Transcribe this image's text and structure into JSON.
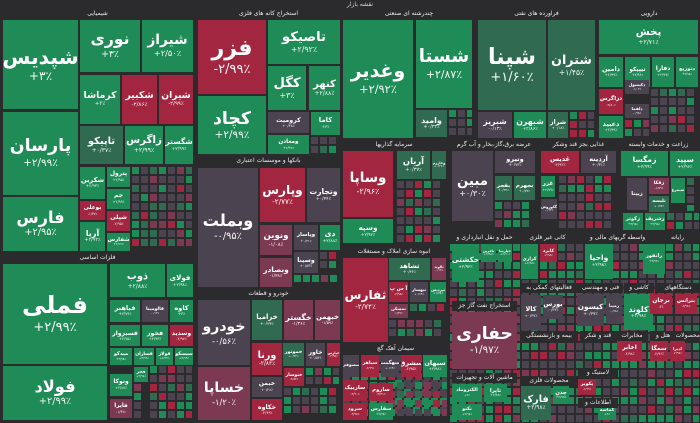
{
  "title": "نقشه بازار",
  "colors": {
    "g": "#1f8b57",
    "g2": "#2f6a51",
    "r": "#a32640",
    "r2": "#7c3a52",
    "n": "#4b4350",
    "background": "#2b2a2c"
  },
  "sectors": [
    {
      "label": "شیمیایی"
    },
    {
      "label": "فلزات اساسی"
    },
    {
      "label": "استخراج کانه های فلزی"
    },
    {
      "label": "بانکها و موسسات اعتباری"
    },
    {
      "label": "خودرو و قطعات"
    },
    {
      "label": "چندرشته ای صنعتی"
    },
    {
      "label": "سرمایه گذاریها"
    },
    {
      "label": "انبوه سازی املاک و مستغلات"
    },
    {
      "label": "سیمان آهک گچ"
    },
    {
      "label": "فراورده های نفتی"
    },
    {
      "label": "عرضه برق،گاز،بخار و آب گرم"
    },
    {
      "label": "غذایی بجز قند وشکر"
    },
    {
      "label": "زراعت و خدمات وابسته"
    },
    {
      "label": "دارویی"
    },
    {
      "label": "حمل و نقل انبارداری و"
    },
    {
      "label": "استخراج نفت گاز جز"
    },
    {
      "label": "ماشین آلات و تجهیزات"
    },
    {
      "label": "کانی غیر فلزی"
    },
    {
      "label": "فعالیتهای کمکی به"
    },
    {
      "label": "بیمه و بازنشستگی"
    },
    {
      "label": "محصولات فلزی"
    },
    {
      "label": "واسطه گریهای مالی و"
    },
    {
      "label": "فنی و مهندسی"
    },
    {
      "label": "قند و شکر"
    },
    {
      "label": "کاشی و"
    },
    {
      "label": "رایانه"
    },
    {
      "label": "دستگاههای"
    },
    {
      "label": "مخابرات"
    },
    {
      "label": "هتل و"
    },
    {
      "label": "محصولات"
    },
    {
      "label": "لاستیک و"
    },
    {
      "label": "اطلاعات و"
    }
  ],
  "tiles": [
    {
      "sym": "شپدیس",
      "chg": "+۳٪",
      "tone": "g"
    },
    {
      "sym": "پارسان",
      "chg": "+۲/۹۹٪",
      "tone": "g"
    },
    {
      "sym": "فارس",
      "chg": "+۲/۹۵٪",
      "tone": "g"
    },
    {
      "sym": "نوری",
      "chg": "+۳٪",
      "tone": "g"
    },
    {
      "sym": "شیراز",
      "chg": "+۲/۵۰٪",
      "tone": "g"
    },
    {
      "sym": "کرماشا",
      "chg": "+۳٪",
      "tone": "g"
    },
    {
      "sym": "شکبیر",
      "chg": "-۲/۸۶٪",
      "tone": "r"
    },
    {
      "sym": "شیران",
      "chg": "-۲/۹۹٪",
      "tone": "r"
    },
    {
      "sym": "تاپیکو",
      "chg": "+۰/۳۷٪",
      "tone": "g2"
    },
    {
      "sym": "زاگرس",
      "chg": "+۲/۹۹٪",
      "tone": "g"
    },
    {
      "sym": "شگستر",
      "chg": "+۲/۹۹٪",
      "tone": "g"
    },
    {
      "sym": "شکربن",
      "chg": "+۲/۹۳٪",
      "tone": "g"
    },
    {
      "sym": "پترول",
      "chg": "+۲/۹۵٪",
      "tone": "g"
    },
    {
      "sym": "جم",
      "chg": "+۲/۹۹٪",
      "tone": "g"
    },
    {
      "sym": "بوعلی",
      "chg": "-۱/۳۷٪",
      "tone": "r"
    },
    {
      "sym": "شپلی",
      "chg": "-۲/۹۵٪",
      "tone": "r"
    },
    {
      "sym": "آریا",
      "chg": "+۲/۹۴٪",
      "tone": "g"
    },
    {
      "sym": "شفارس",
      "chg": "+۲/۱۲٪",
      "tone": "g"
    },
    {
      "sym": "فملی",
      "chg": "+۲/۹۹٪",
      "tone": "g"
    },
    {
      "sym": "فولاد",
      "chg": "+۲/۹۹٪",
      "tone": "g"
    },
    {
      "sym": "ذوب",
      "chg": "+۲/۸۸٪",
      "tone": "g"
    },
    {
      "sym": "فولای",
      "chg": "+۲/۹۸٪",
      "tone": "g"
    },
    {
      "sym": "فباهنر",
      "chg": "+۲/۷۹٪",
      "tone": "g"
    },
    {
      "sym": "فالومینا",
      "chg": "-۰/۱۳٪",
      "tone": "n"
    },
    {
      "sym": "کاوه",
      "chg": "+۳٪",
      "tone": "g"
    },
    {
      "sym": "فسبزوار",
      "chg": "+۲/۹۵٪",
      "tone": "g"
    },
    {
      "sym": "فخوز",
      "chg": "+۲/۹۳٪",
      "tone": "g"
    },
    {
      "sym": "وسدید",
      "chg": "-۲/۹۷٪",
      "tone": "r"
    },
    {
      "sym": "میدکو",
      "chg": "+۲/۹۸٪",
      "tone": "g"
    },
    {
      "sym": "فسازان",
      "chg": "+۲/۹۹٪",
      "tone": "g"
    },
    {
      "sym": "فولاژ",
      "chg": "+۲/۹۹٪",
      "tone": "g"
    },
    {
      "sym": "سیسکو",
      "chg": "+۲/۹۹٪",
      "tone": "g"
    },
    {
      "sym": "ونوکا",
      "chg": "+۲/۷۷٪",
      "tone": "g"
    },
    {
      "sym": "فایرا",
      "chg": "-۱/۹۹٪",
      "tone": "r2"
    },
    {
      "sym": "فجر",
      "chg": "+۲/۹۸٪",
      "tone": "g"
    },
    {
      "sym": "فزر",
      "chg": "-۲/۹۹٪",
      "tone": "r"
    },
    {
      "sym": "کچاد",
      "chg": "+۲/۹۹٪",
      "tone": "g"
    },
    {
      "sym": "تاصیکو",
      "chg": "+۲/۹۲٪",
      "tone": "g"
    },
    {
      "sym": "کگل",
      "chg": "+۳٪",
      "tone": "g"
    },
    {
      "sym": "کنهر",
      "chg": "+۲/۸۸٪",
      "tone": "g"
    },
    {
      "sym": "کرومیت",
      "chg": "+۰/۴۸٪",
      "tone": "n"
    },
    {
      "sym": "کاما",
      "chg": "+۳٪",
      "tone": "g"
    },
    {
      "sym": "ومعادن",
      "chg": "+۲/۹۲٪",
      "tone": "g"
    },
    {
      "sym": "وبملت",
      "chg": "-۰/۹۵٪",
      "tone": "n"
    },
    {
      "sym": "وپارس",
      "chg": "-۲/۷۷٪",
      "tone": "r"
    },
    {
      "sym": "وتجارت",
      "chg": "+۰/۴۴٪",
      "tone": "n"
    },
    {
      "sym": "ونوین",
      "chg": "-۱/۰۸٪",
      "tone": "r2"
    },
    {
      "sym": "وپاسار",
      "chg": "+۰/۳۱٪",
      "tone": "n"
    },
    {
      "sym": "دی",
      "chg": "+۲/۸۸٪",
      "tone": "g"
    },
    {
      "sym": "وبصادر",
      "chg": "-۱/۳۸٪",
      "tone": "r2"
    },
    {
      "sym": "وسینا",
      "chg": "+۰/۸۳٪",
      "tone": "n"
    },
    {
      "sym": "خودرو",
      "chg": "-۰/۵۶٪",
      "tone": "n"
    },
    {
      "sym": "خساپا",
      "chg": "-۱/۲۰٪",
      "tone": "r2"
    },
    {
      "sym": "خزامیا",
      "chg": "+۰/۳۳٪",
      "tone": "g2"
    },
    {
      "sym": "خگستر",
      "chg": "-۱/۳۶٪",
      "tone": "r2"
    },
    {
      "sym": "خبهمن",
      "chg": "-۱/۵۹٪",
      "tone": "r2"
    },
    {
      "sym": "ورنا",
      "chg": "-۲/۸۴٪",
      "tone": "r"
    },
    {
      "sym": "خموتور",
      "chg": "+۰/۳۴٪",
      "tone": "g2"
    },
    {
      "sym": "خاور",
      "chg": "+۰/۵۴٪",
      "tone": "n"
    },
    {
      "sym": "خپارس",
      "chg": "-۲/۹۷٪",
      "tone": "r"
    },
    {
      "sym": "خبمن",
      "chg": "+۰/۲۸٪",
      "tone": "n"
    },
    {
      "sym": "خکاوه",
      "chg": "-۲/۹۹٪",
      "tone": "r"
    },
    {
      "sym": "خنوساز",
      "chg": "-۲/۸۳٪",
      "tone": "r"
    },
    {
      "sym": "وغدیر",
      "chg": "+۲/۹۲٪",
      "tone": "g"
    },
    {
      "sym": "شستا",
      "chg": "+۲/۸۷٪",
      "tone": "g"
    },
    {
      "sym": "وامید",
      "chg": "+۰/۳۳٪",
      "tone": "g2"
    },
    {
      "sym": "وساپا",
      "chg": "-۲/۹۶٪",
      "tone": "r"
    },
    {
      "sym": "وسپه",
      "chg": "+۲/۹۲٪",
      "tone": "g"
    },
    {
      "sym": "آریان",
      "chg": "+۰/۳۷٪",
      "tone": "g2"
    },
    {
      "sym": "وخارزم",
      "chg": "+۰/۳۶٪",
      "tone": "g2"
    },
    {
      "sym": "ثفارس",
      "chg": "-۲/۷۴٪",
      "tone": "r"
    },
    {
      "sym": "ثشاهد",
      "chg": "+۰/۴۴٪",
      "tone": "g2"
    },
    {
      "sym": "ثالوند",
      "chg": "-۰/۱۳٪",
      "tone": "r2"
    },
    {
      "sym": "آ س پ",
      "chg": "-۲/۹۵٪",
      "tone": "r"
    },
    {
      "sym": "ثبهساز",
      "chg": "+۰/۶۴٪",
      "tone": "n"
    },
    {
      "sym": "ثپردیس",
      "chg": "+۱/۷۸٪",
      "tone": "g"
    },
    {
      "sym": "ثمسکن",
      "chg": "-۱/۳۲٪",
      "tone": "r2"
    },
    {
      "sym": "سصوفی",
      "chg": "",
      "tone": "n"
    },
    {
      "sym": "سیاهر",
      "chg": "-۲/۹۹٪",
      "tone": "r"
    },
    {
      "sym": "سهگمت",
      "chg": "+۰/۶۴٪",
      "tone": "n"
    },
    {
      "sym": "سشرق",
      "chg": "-۲/۹۵٪",
      "tone": "r"
    },
    {
      "sym": "سبهان",
      "chg": "+۲/۹۸٪",
      "tone": "g"
    },
    {
      "sym": "ساربیک",
      "chg": "-۲/۹۰٪",
      "tone": "r"
    },
    {
      "sym": "ساروم",
      "chg": "-۲/۴۱٪",
      "tone": "r"
    },
    {
      "sym": "سرود",
      "chg": "-۲/۹۵٪",
      "tone": "r"
    },
    {
      "sym": "سفارس",
      "chg": "+۲/۹۸٪",
      "tone": "g"
    },
    {
      "sym": "شپنا",
      "chg": "+۱/۶۰٪",
      "tone": "g2"
    },
    {
      "sym": "شتران",
      "chg": "+۱/۴۵٪",
      "tone": "g2"
    },
    {
      "sym": "شبریز",
      "chg": "-۰/۱۳٪",
      "tone": "n"
    },
    {
      "sym": "شبهرن",
      "chg": "+۲/۸۶٪",
      "tone": "g"
    },
    {
      "sym": "شراز",
      "chg": "+۰/۱۸٪",
      "tone": "g2"
    },
    {
      "sym": "مبین",
      "chg": "+۰/۳۰٪",
      "tone": "n"
    },
    {
      "sym": "وتیرو",
      "chg": "+۰/۷۳٪",
      "tone": "n"
    },
    {
      "sym": "بفجر",
      "chg": "+۰/۳۲٪",
      "tone": "g2"
    },
    {
      "sym": "بجهرم",
      "chg": "+۰/۷۷٪",
      "tone": "g2"
    },
    {
      "sym": "غدیس",
      "chg": "-۲/۹۲٪",
      "tone": "r"
    },
    {
      "sym": "آردینه",
      "chg": "+۰/۳۱٪",
      "tone": "n"
    },
    {
      "sym": "غزر",
      "chg": "+۲/۹۹٪",
      "tone": "g"
    },
    {
      "sym": "گکوروش",
      "chg": "-۰/۹۲٪",
      "tone": "n"
    },
    {
      "sym": "زمگسا",
      "chg": "+۲/۹۹٪",
      "tone": "g"
    },
    {
      "sym": "سپید",
      "chg": "+۲/۹۶٪",
      "tone": "g"
    },
    {
      "sym": "زبینا",
      "chg": "",
      "tone": "n"
    },
    {
      "sym": "زفکا",
      "chg": "-۱/۵۹٪",
      "tone": "r2"
    },
    {
      "sym": "تلیسه",
      "chg": "+۰/۷۷٪",
      "tone": "g2"
    },
    {
      "sym": "سیمرغ",
      "chg": "",
      "tone": "g"
    },
    {
      "sym": "زکوثر",
      "chg": "+۲/۹۸٪",
      "tone": "g"
    },
    {
      "sym": "زشریف",
      "chg": "+۲/۹۸٪",
      "tone": "g"
    },
    {
      "sym": "پخش",
      "chg": "+۲/۷۱٪",
      "tone": "g"
    },
    {
      "sym": "دامین",
      "chg": "+۲/۹۹٪",
      "tone": "g"
    },
    {
      "sym": "تیپیکو",
      "chg": "+۲/۹۶٪",
      "tone": "g"
    },
    {
      "sym": "دفارا",
      "chg": "+۲/۹۹٪",
      "tone": "g"
    },
    {
      "sym": "دتوزیع",
      "chg": "+۲/۹۸٪",
      "tone": "g"
    },
    {
      "sym": "دزاگرس",
      "chg": "-۲/۸۰٪",
      "tone": "r"
    },
    {
      "sym": "دکپسول",
      "chg": "-۱/۰۳٪",
      "tone": "n"
    },
    {
      "sym": "دلقما",
      "chg": "-۰/۹۸٪",
      "tone": "n"
    },
    {
      "sym": "دعبید",
      "chg": "+۲/۹۹٪",
      "tone": "g"
    },
    {
      "sym": "حکشتی",
      "chg": "+۲/۹۳٪",
      "tone": "g"
    },
    {
      "sym": "بافرین",
      "chg": "+۲/۹۸٪",
      "tone": "g"
    },
    {
      "sym": "حپارسا",
      "chg": "+۲/۹۰٪",
      "tone": "g"
    },
    {
      "sym": "حفاری",
      "chg": "-۱/۹۷٪",
      "tone": "r2"
    },
    {
      "sym": "الکتروماد",
      "chg": "+۳٪",
      "tone": "g"
    },
    {
      "sym": "تاپرا",
      "chg": "+۲/۹۸٪",
      "tone": "g"
    },
    {
      "sym": "تکنو",
      "chg": "+۲/۹۸٪",
      "tone": "g"
    },
    {
      "sym": "کرازی",
      "chg": "+۲/۹۸٪",
      "tone": "g"
    },
    {
      "sym": "کایزد",
      "chg": "-۲/۹۸٪",
      "tone": "r"
    },
    {
      "sym": "کالا",
      "chg": "+۰/۳۷٪",
      "tone": "n"
    },
    {
      "sym": "بورس",
      "chg": "-۰/۴۳٪",
      "tone": "n"
    },
    {
      "sym": "فارک",
      "chg": "+۲/۹۸٪",
      "tone": "g2"
    },
    {
      "sym": "چدن",
      "chg": "+۲/۹۸٪",
      "tone": "g"
    },
    {
      "sym": "واحیا",
      "chg": "+۲/۹۸٪",
      "tone": "g"
    },
    {
      "sym": "کیسون",
      "chg": "+۰/۳۷٪",
      "tone": "n"
    },
    {
      "sym": "رمپنا",
      "chg": "-۰/۶۸٪",
      "tone": "n"
    },
    {
      "sym": "کلوند",
      "chg": "+۲/۹۸٪",
      "tone": "g"
    },
    {
      "sym": "رانفور",
      "chg": "+۲/۹۶٪",
      "tone": "g"
    },
    {
      "sym": "برجان",
      "chg": "-۳٪",
      "tone": "r"
    },
    {
      "sym": "بترانس",
      "chg": "-۲/۹۸٪",
      "tone": "r"
    },
    {
      "sym": "اخابر",
      "chg": "-۲/۹۸٪",
      "tone": "r"
    },
    {
      "sym": "سمگا",
      "chg": "-۲/۹۶٪",
      "tone": "r"
    },
    {
      "sym": "ادبرا",
      "chg": "-۲/۹۷٪",
      "tone": "r"
    },
    {
      "sym": "پکویر",
      "chg": "-۱/۹۹٪",
      "tone": "r"
    },
    {
      "sym": "کماسه",
      "chg": "+۳٪",
      "tone": "g"
    }
  ]
}
